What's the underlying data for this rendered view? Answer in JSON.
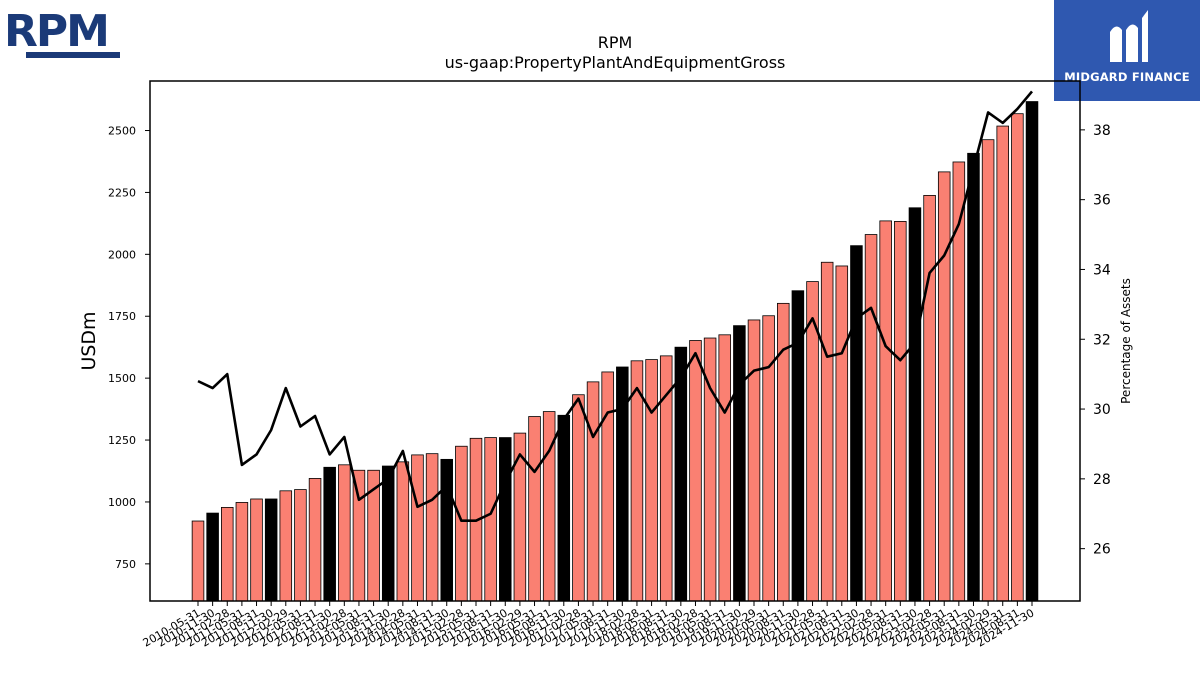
{
  "logos": {
    "left_text": "RPM",
    "right_text": "MIDGARD FINANCE",
    "colors": {
      "rpm_blue": "#1b3a78",
      "midgard_blue": "#2f58b0"
    }
  },
  "chart_data": {
    "type": "bar",
    "title": "RPM",
    "subtitle": "us-gaap:PropertyPlantAndEquipmentGross",
    "ylabel": "USDm",
    "y2label": "Percentage of Assets",
    "ylim": [
      600,
      2700
    ],
    "y2lim": [
      24.5,
      39.4
    ],
    "yticks": [
      750,
      1000,
      1250,
      1500,
      1750,
      2000,
      2250,
      2500
    ],
    "y2ticks": [
      26,
      28,
      30,
      32,
      34,
      36,
      38
    ],
    "categories": [
      "2010-05-31",
      "2010-11-30",
      "2011-02-28",
      "2011-05-31",
      "2011-08-31",
      "2011-11-30",
      "2012-02-29",
      "2012-05-31",
      "2012-08-31",
      "2012-11-30",
      "2013-02-28",
      "2013-05-31",
      "2013-08-31",
      "2013-11-30",
      "2014-02-28",
      "2014-05-31",
      "2014-08-31",
      "2014-11-30",
      "2015-02-28",
      "2015-05-31",
      "2015-08-31",
      "2015-11-30",
      "2016-02-29",
      "2016-05-31",
      "2016-08-31",
      "2016-11-30",
      "2017-02-28",
      "2017-05-31",
      "2017-08-31",
      "2017-11-30",
      "2018-02-28",
      "2018-05-31",
      "2018-08-31",
      "2018-11-30",
      "2019-02-28",
      "2019-05-31",
      "2019-08-31",
      "2019-11-30",
      "2020-02-29",
      "2020-05-31",
      "2020-08-31",
      "2020-11-30",
      "2021-02-28",
      "2021-05-31",
      "2021-08-31",
      "2021-11-30",
      "2022-02-28",
      "2022-05-31",
      "2022-08-31",
      "2022-11-30",
      "2023-02-28",
      "2023-05-31",
      "2023-08-31",
      "2023-11-30",
      "2024-02-29",
      "2024-05-31",
      "2024-08-31",
      "2024-11-30"
    ],
    "series": [
      {
        "type": "bar",
        "values": [
          923,
          955,
          978,
          998,
          1012,
          1012,
          1045,
          1050,
          1095,
          1140,
          1150,
          1128,
          1128,
          1145,
          1162,
          1190,
          1195,
          1172,
          1225,
          1257,
          1260,
          1260,
          1278,
          1345,
          1365,
          1350,
          1433,
          1485,
          1525,
          1545,
          1570,
          1575,
          1590,
          1625,
          1652,
          1662,
          1675,
          1712,
          1735,
          1752,
          1802,
          1853,
          1890,
          1968,
          1953,
          2035,
          2080,
          2135,
          2133,
          2188,
          2238,
          2333,
          2373,
          2408,
          2463,
          2518,
          2568,
          2617
        ],
        "bar_colors": [
          "#fa8072",
          "#000000"
        ]
      },
      {
        "type": "line",
        "values": [
          30.8,
          30.6,
          31.0,
          28.4,
          28.7,
          29.4,
          30.6,
          29.5,
          29.8,
          28.7,
          29.2,
          27.4,
          27.7,
          28.0,
          28.8,
          27.2,
          27.4,
          27.8,
          26.8,
          26.8,
          27.0,
          27.9,
          28.7,
          28.2,
          28.8,
          29.7,
          30.3,
          29.2,
          29.9,
          30.0,
          30.6,
          29.9,
          30.4,
          30.9,
          31.6,
          30.6,
          29.9,
          30.7,
          31.1,
          31.2,
          31.7,
          31.9,
          32.6,
          31.5,
          31.6,
          32.6,
          32.9,
          31.8,
          31.4,
          31.9,
          33.9,
          34.4,
          35.3,
          36.9,
          38.5,
          38.2,
          38.6,
          39.1
        ],
        "color": "#000000"
      }
    ],
    "grid": false,
    "legend": "none"
  }
}
